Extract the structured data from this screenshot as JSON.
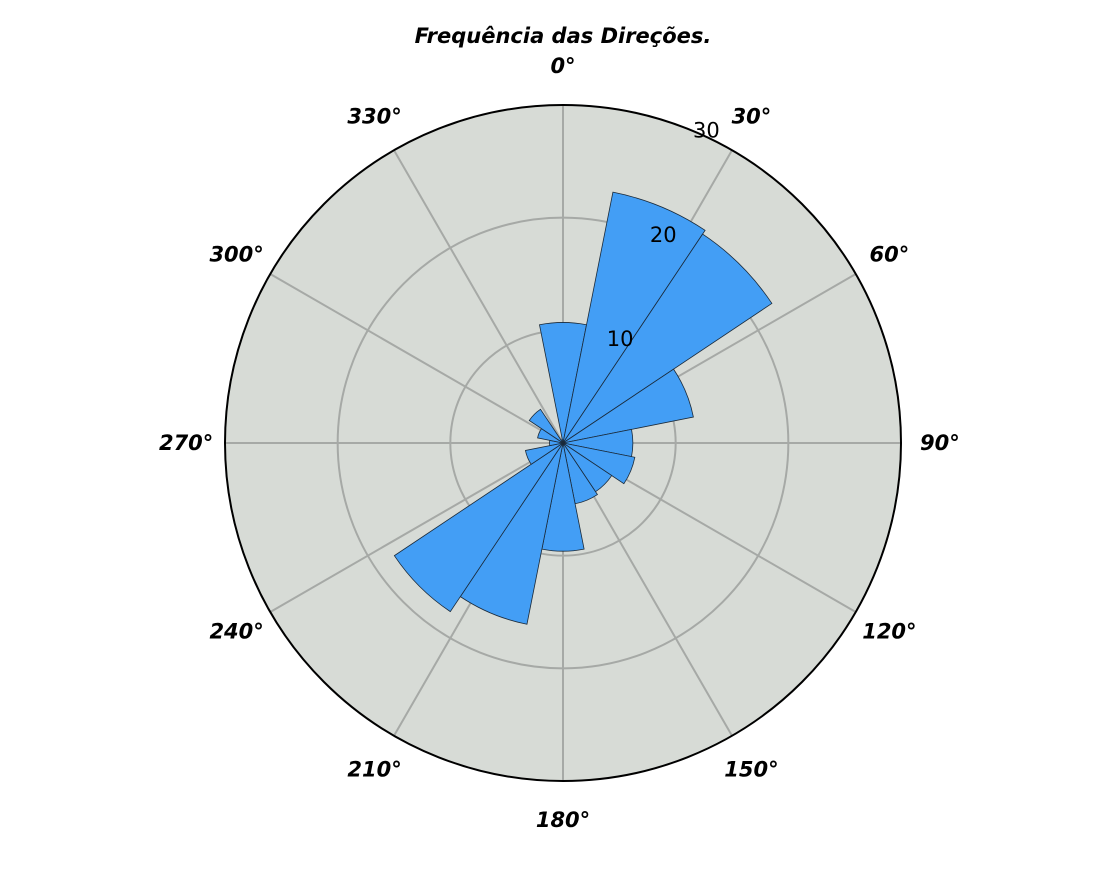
{
  "chart_data": {
    "type": "bar",
    "subtype": "polar-rose",
    "title": "Frequência das Direções.",
    "theta_zero": "N",
    "theta_direction": "clockwise",
    "rlim": [
      0,
      30
    ],
    "rticks": [
      10,
      20,
      30
    ],
    "rtick_labels": [
      "10",
      "20",
      "30"
    ],
    "angle_ticks": [
      0,
      30,
      60,
      90,
      120,
      150,
      180,
      210,
      240,
      270,
      300,
      330
    ],
    "angle_tick_labels": [
      "0°",
      "30°",
      "60°",
      "90°",
      "120°",
      "150°",
      "180°",
      "210°",
      "240°",
      "270°",
      "300°",
      "330°"
    ],
    "bin_width_deg": 22.5,
    "bins": [
      {
        "start": 348.75,
        "end": 371.25,
        "value": 10.7
      },
      {
        "start": 11.25,
        "end": 33.75,
        "value": 22.7
      },
      {
        "start": 33.75,
        "end": 56.25,
        "value": 22.3
      },
      {
        "start": 56.25,
        "end": 78.75,
        "value": 11.8
      },
      {
        "start": 78.75,
        "end": 101.25,
        "value": 6.2
      },
      {
        "start": 101.25,
        "end": 123.75,
        "value": 6.5
      },
      {
        "start": 123.75,
        "end": 146.25,
        "value": 5.2
      },
      {
        "start": 146.25,
        "end": 168.75,
        "value": 5.5
      },
      {
        "start": 168.75,
        "end": 191.25,
        "value": 9.6
      },
      {
        "start": 191.25,
        "end": 213.75,
        "value": 16.4
      },
      {
        "start": 213.75,
        "end": 236.25,
        "value": 18.0
      },
      {
        "start": 236.25,
        "end": 258.75,
        "value": 3.4
      },
      {
        "start": 258.75,
        "end": 281.25,
        "value": 1.2
      },
      {
        "start": 281.25,
        "end": 303.75,
        "value": 2.3
      },
      {
        "start": 303.75,
        "end": 326.25,
        "value": 3.6
      },
      {
        "start": 326.25,
        "end": 348.75,
        "value": 0.3
      }
    ],
    "grid": true,
    "colors": {
      "background": "#d7dbd6",
      "bar_fill": "#439ef5",
      "bar_edge": "#1a2a3a",
      "grid": "#a6a9a6",
      "outline": "#000000"
    }
  }
}
